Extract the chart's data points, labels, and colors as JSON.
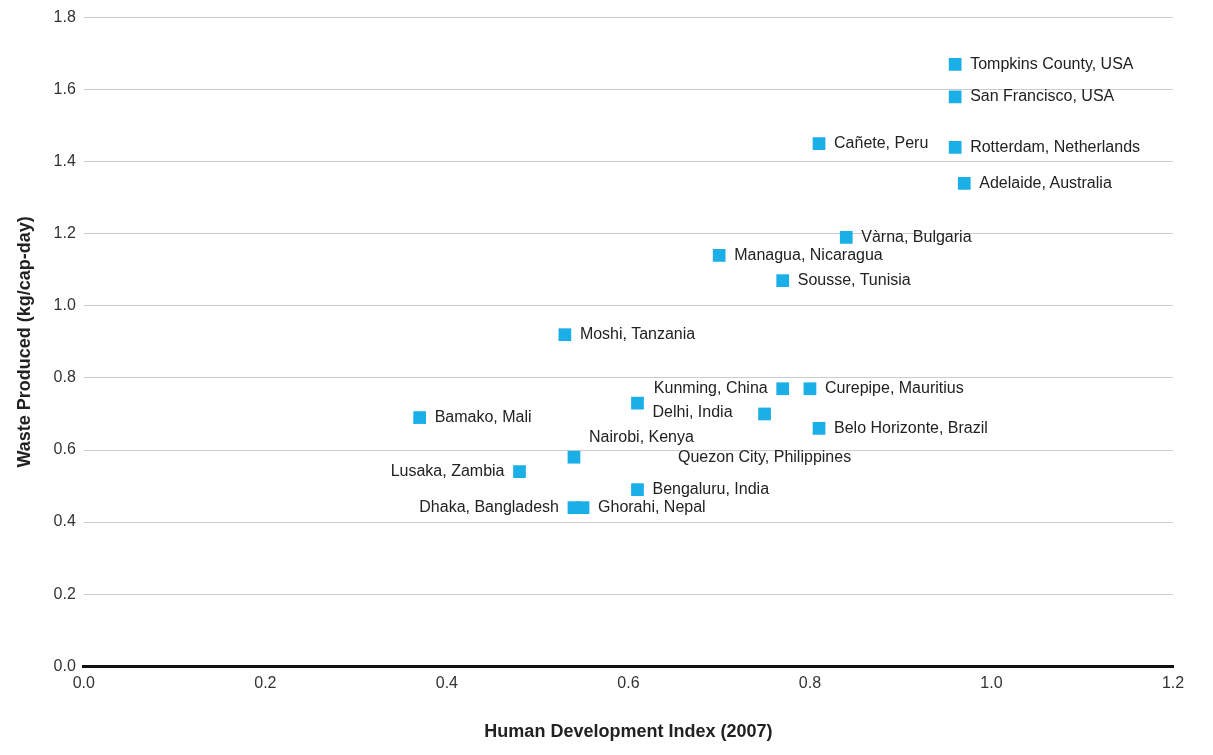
{
  "chart_data": {
    "type": "scatter",
    "xlabel": "Human Development Index (2007)",
    "ylabel": "Waste Produced (kg/cap-day)",
    "x": [
      0.96,
      0.96,
      0.96,
      0.97,
      0.81,
      0.84,
      0.7,
      0.77,
      0.53,
      0.77,
      0.8,
      0.75,
      0.81,
      0.61,
      0.37,
      0.54,
      0.48,
      0.61,
      0.55,
      0.54
    ],
    "series": [
      {
        "color": "#1aafe6",
        "values": [
          1.67,
          1.58,
          1.44,
          1.34,
          1.45,
          1.19,
          1.14,
          1.07,
          0.92,
          0.77,
          0.77,
          0.7,
          0.66,
          0.73,
          0.69,
          0.58,
          0.54,
          0.49,
          0.44,
          0.44
        ]
      }
    ],
    "marker": "square",
    "grid": "y",
    "legend": false,
    "xlim": [
      0,
      1.2
    ],
    "ylim": [
      0,
      1.8
    ],
    "xticks": [
      {
        "value": 0,
        "label": "0.0"
      },
      {
        "value": 0.2,
        "label": "0.2"
      },
      {
        "value": 0.4,
        "label": "0.4"
      },
      {
        "value": 0.6,
        "label": "0.6"
      },
      {
        "value": 0.8,
        "label": "0.8"
      },
      {
        "value": 1,
        "label": "1.0"
      },
      {
        "value": 1.2,
        "label": "1.2"
      }
    ],
    "yticks": [
      {
        "value": 0,
        "label": "0.0"
      },
      {
        "value": 0.2,
        "label": "0.2"
      },
      {
        "value": 0.4,
        "label": "0.4"
      },
      {
        "value": 0.6,
        "label": "0.6"
      },
      {
        "value": 0.8,
        "label": "0.8"
      },
      {
        "value": 1,
        "label": "1.0"
      },
      {
        "value": 1.2,
        "label": "1.2"
      },
      {
        "value": 1.4,
        "label": "1.4"
      },
      {
        "value": 1.6,
        "label": "1.6"
      },
      {
        "value": 1.8,
        "label": "1.8"
      }
    ],
    "annotations": [
      {
        "text": "Tompkins County, USA",
        "x": 0.96,
        "y": 1.67
      },
      {
        "text": "San Francisco, USA",
        "x": 0.96,
        "y": 1.58
      },
      {
        "text": "Rotterdam, Netherlands",
        "x": 0.96,
        "y": 1.44
      },
      {
        "text": "Adelaide, Australia",
        "x": 0.97,
        "y": 1.34
      },
      {
        "text": "Cañete, Peru",
        "x": 0.81,
        "y": 1.45
      },
      {
        "text": "Vàrna, Bulgaria",
        "x": 0.84,
        "y": 1.19
      },
      {
        "text": "Managua, Nicaragua",
        "x": 0.7,
        "y": 1.14
      },
      {
        "text": "Sousse, Tunisia",
        "x": 0.77,
        "y": 1.07
      },
      {
        "text": "Moshi, Tanzania",
        "x": 0.53,
        "y": 0.92
      },
      {
        "text": "Kunming, China",
        "x": 0.77,
        "y": 0.77
      },
      {
        "text": "Curepipe, Mauritius",
        "x": 0.8,
        "y": 0.77
      },
      {
        "text": "Quezon City, Philippines",
        "x": 0.75,
        "y": 0.7
      },
      {
        "text": "Belo Horizonte, Brazil",
        "x": 0.81,
        "y": 0.66
      },
      {
        "text": "Delhi, India",
        "x": 0.61,
        "y": 0.73
      },
      {
        "text": "Bamako, Mali",
        "x": 0.37,
        "y": 0.69
      },
      {
        "text": "Nairobi, Kenya",
        "x": 0.54,
        "y": 0.58
      },
      {
        "text": "Lusaka, Zambia",
        "x": 0.48,
        "y": 0.54
      },
      {
        "text": "Bengaluru, India",
        "x": 0.61,
        "y": 0.49
      },
      {
        "text": "Ghorahi, Nepal",
        "x": 0.55,
        "y": 0.44
      },
      {
        "text": "Dhaka, Bangladesh",
        "x": 0.54,
        "y": 0.44
      }
    ]
  }
}
